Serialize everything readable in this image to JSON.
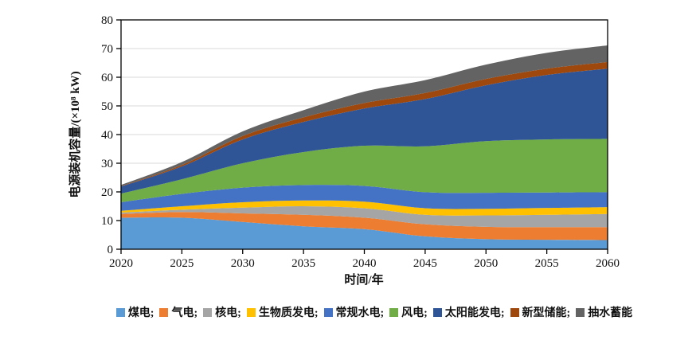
{
  "figure": {
    "background": "#ffffff",
    "text_color": "#111111",
    "grid_color": "#d9d9d9",
    "axis_color": "#000000"
  },
  "chart_data": {
    "type": "area",
    "stacked": true,
    "title": "",
    "xlabel": "时间/年",
    "ylabel": "电源装机容量/(×10⁸ kW)",
    "x": [
      2020,
      2025,
      2030,
      2035,
      2040,
      2045,
      2050,
      2055,
      2060
    ],
    "xlim": [
      2020,
      2060
    ],
    "ylim": [
      0,
      80
    ],
    "yticks": [
      0,
      10,
      20,
      30,
      40,
      50,
      60,
      70,
      80
    ],
    "grid": "horizontal",
    "legend_position": "bottom",
    "series": [
      {
        "key": "coal",
        "name": "煤电",
        "legend_label": "煤电;",
        "color": "#5B9BD5",
        "values": [
          11.0,
          11.0,
          9.5,
          8.0,
          7.0,
          4.5,
          3.5,
          3.3,
          3.2
        ]
      },
      {
        "key": "gas",
        "name": "气电",
        "legend_label": "气电;",
        "color": "#ED7D31",
        "values": [
          1.3,
          2.0,
          3.0,
          4.0,
          4.0,
          4.2,
          4.3,
          4.4,
          4.5
        ]
      },
      {
        "key": "nuclear",
        "name": "核电",
        "legend_label": "核电;",
        "color": "#A5A5A5",
        "values": [
          0.5,
          0.8,
          2.0,
          3.0,
          3.3,
          3.3,
          4.0,
          4.3,
          4.6
        ]
      },
      {
        "key": "biomass",
        "name": "生物质发电",
        "legend_label": "生物质发电;",
        "color": "#FFC000",
        "values": [
          0.6,
          1.2,
          1.9,
          2.0,
          2.3,
          2.3,
          2.3,
          2.4,
          2.4
        ]
      },
      {
        "key": "hydro",
        "name": "常规水电",
        "legend_label": "常规水电;",
        "color": "#4472C4",
        "values": [
          3.0,
          4.3,
          5.1,
          5.4,
          5.5,
          5.6,
          5.6,
          5.4,
          5.2
        ]
      },
      {
        "key": "wind",
        "name": "风电",
        "legend_label": "风电;",
        "color": "#70AD47",
        "values": [
          3.0,
          5.1,
          8.5,
          11.5,
          14.0,
          16.0,
          18.0,
          18.5,
          18.6
        ]
      },
      {
        "key": "solar",
        "name": "太阳能发电",
        "legend_label": "太阳能发电;",
        "color": "#2F5597",
        "values": [
          2.5,
          4.5,
          8.3,
          10.5,
          13.0,
          16.5,
          19.5,
          22.5,
          24.5
        ]
      },
      {
        "key": "new_storage",
        "name": "新型储能",
        "legend_label": "新型储能;",
        "color": "#9E480E",
        "values": [
          0.1,
          0.5,
          1.2,
          1.6,
          1.9,
          2.1,
          2.2,
          2.2,
          2.3
        ]
      },
      {
        "key": "pumped_storage",
        "name": "抽水蓄能",
        "legend_label": "抽水蓄能",
        "color": "#636363",
        "values": [
          0.4,
          1.0,
          1.6,
          2.5,
          4.0,
          4.5,
          5.0,
          5.5,
          5.8
        ]
      }
    ]
  }
}
